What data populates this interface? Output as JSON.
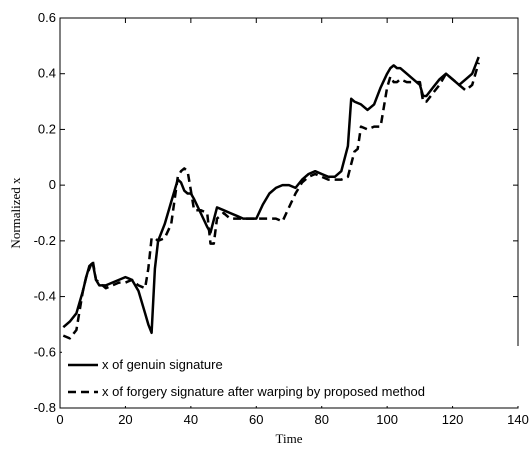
{
  "chart_data": {
    "type": "line",
    "xlabel": "Time",
    "ylabel": "Normalized x",
    "xlim": [
      0,
      140
    ],
    "ylim": [
      -0.8,
      0.6
    ],
    "xticks": [
      0,
      20,
      40,
      60,
      80,
      100,
      120,
      140
    ],
    "yticks": [
      -0.8,
      -0.6,
      -0.4,
      -0.2,
      0,
      0.2,
      0.4,
      0.6
    ],
    "xtick_labels": [
      "0",
      "20",
      "40",
      "60",
      "80",
      "100",
      "120",
      "140"
    ],
    "ytick_labels": [
      "-0.8",
      "-0.6",
      "-0.4",
      "-0.2",
      "0",
      "0.2",
      "0.4",
      "0.6"
    ],
    "grid": false,
    "legend_position": "bottom-left",
    "series": [
      {
        "name": "x of genuin signature",
        "style": "solid",
        "color": "#000000",
        "x": [
          1,
          3,
          5,
          7,
          8,
          9,
          10,
          11,
          12,
          14,
          16,
          18,
          20,
          22,
          24,
          26,
          27,
          28,
          29,
          30,
          32,
          34,
          36,
          37,
          38,
          39,
          40,
          41,
          43,
          45,
          46,
          48,
          50,
          52,
          54,
          56,
          58,
          60,
          62,
          64,
          66,
          68,
          70,
          72,
          74,
          76,
          78,
          80,
          82,
          84,
          86,
          88,
          89,
          90,
          92,
          94,
          96,
          98,
          100,
          101,
          102,
          103,
          104,
          106,
          108,
          110,
          111,
          112,
          114,
          116,
          118,
          120,
          122,
          124,
          126,
          128
        ],
        "y": [
          -0.51,
          -0.49,
          -0.46,
          -0.38,
          -0.33,
          -0.29,
          -0.28,
          -0.34,
          -0.36,
          -0.36,
          -0.35,
          -0.34,
          -0.33,
          -0.34,
          -0.38,
          -0.46,
          -0.5,
          -0.53,
          -0.3,
          -0.2,
          -0.14,
          -0.06,
          0.02,
          0.01,
          -0.02,
          -0.03,
          -0.03,
          -0.05,
          -0.1,
          -0.15,
          -0.17,
          -0.08,
          -0.09,
          -0.1,
          -0.11,
          -0.12,
          -0.12,
          -0.12,
          -0.07,
          -0.03,
          -0.01,
          0.0,
          0.0,
          -0.01,
          0.02,
          0.04,
          0.05,
          0.04,
          0.03,
          0.03,
          0.05,
          0.14,
          0.31,
          0.3,
          0.29,
          0.27,
          0.29,
          0.35,
          0.4,
          0.42,
          0.43,
          0.42,
          0.42,
          0.4,
          0.38,
          0.36,
          0.32,
          0.32,
          0.35,
          0.38,
          0.4,
          0.38,
          0.36,
          0.38,
          0.4,
          0.46
        ]
      },
      {
        "name": "x of forgery signature after warping by proposed method",
        "style": "dashed",
        "color": "#000000",
        "x": [
          1,
          3,
          5,
          7,
          8,
          9,
          10,
          11,
          12,
          14,
          16,
          18,
          20,
          22,
          24,
          26,
          27,
          28,
          29,
          30,
          32,
          34,
          36,
          37,
          38,
          39,
          40,
          41,
          43,
          45,
          46,
          47,
          48,
          50,
          52,
          54,
          56,
          58,
          60,
          62,
          64,
          66,
          68,
          70,
          72,
          74,
          76,
          78,
          80,
          82,
          84,
          86,
          88,
          90,
          91,
          92,
          94,
          96,
          98,
          100,
          101,
          102,
          103,
          104,
          106,
          108,
          110,
          111,
          112,
          114,
          116,
          118,
          120,
          122,
          124,
          126,
          128
        ],
        "y": [
          -0.54,
          -0.55,
          -0.52,
          -0.38,
          -0.33,
          -0.3,
          -0.27,
          -0.34,
          -0.35,
          -0.37,
          -0.36,
          -0.35,
          -0.35,
          -0.34,
          -0.36,
          -0.37,
          -0.3,
          -0.19,
          -0.19,
          -0.2,
          -0.19,
          -0.14,
          0.03,
          0.05,
          0.06,
          0.05,
          -0.02,
          -0.09,
          -0.09,
          -0.1,
          -0.21,
          -0.21,
          -0.12,
          -0.1,
          -0.12,
          -0.12,
          -0.12,
          -0.12,
          -0.12,
          -0.12,
          -0.12,
          -0.12,
          -0.13,
          -0.08,
          -0.03,
          0.01,
          0.03,
          0.04,
          0.03,
          0.02,
          0.02,
          0.02,
          0.03,
          0.12,
          0.13,
          0.21,
          0.2,
          0.21,
          0.21,
          0.35,
          0.39,
          0.37,
          0.37,
          0.38,
          0.37,
          0.37,
          0.37,
          0.3,
          0.3,
          0.33,
          0.36,
          0.4,
          0.38,
          0.36,
          0.34,
          0.36,
          0.44
        ]
      }
    ]
  }
}
